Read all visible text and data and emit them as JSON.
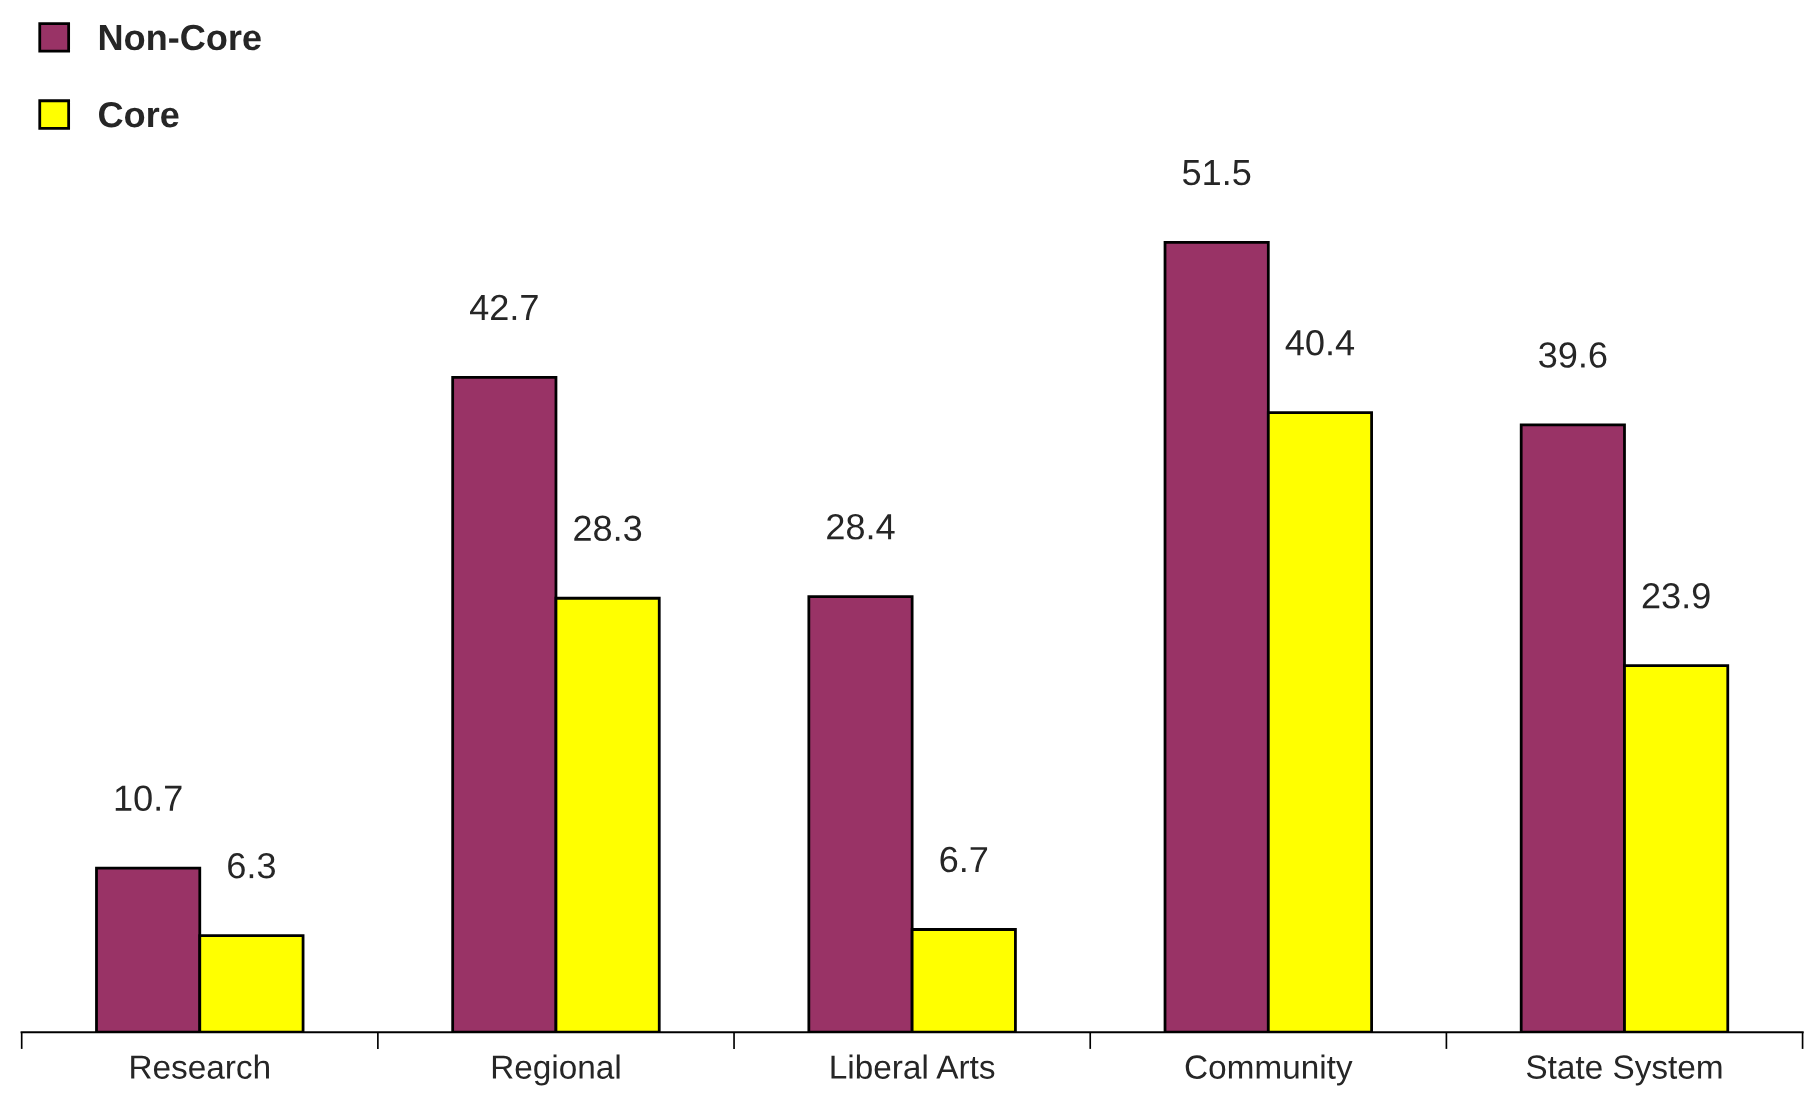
{
  "chart_data": {
    "type": "bar",
    "categories": [
      "Research",
      "Regional",
      "Liberal Arts",
      "Community",
      "State System"
    ],
    "series": [
      {
        "name": "Non-Core",
        "color": "#993366",
        "values": [
          10.7,
          42.7,
          28.4,
          51.5,
          39.6
        ]
      },
      {
        "name": "Core",
        "color": "#ffff00",
        "values": [
          6.3,
          28.3,
          6.7,
          40.4,
          23.9
        ]
      }
    ],
    "data_labels": true,
    "legend": "top left",
    "grid": false
  }
}
